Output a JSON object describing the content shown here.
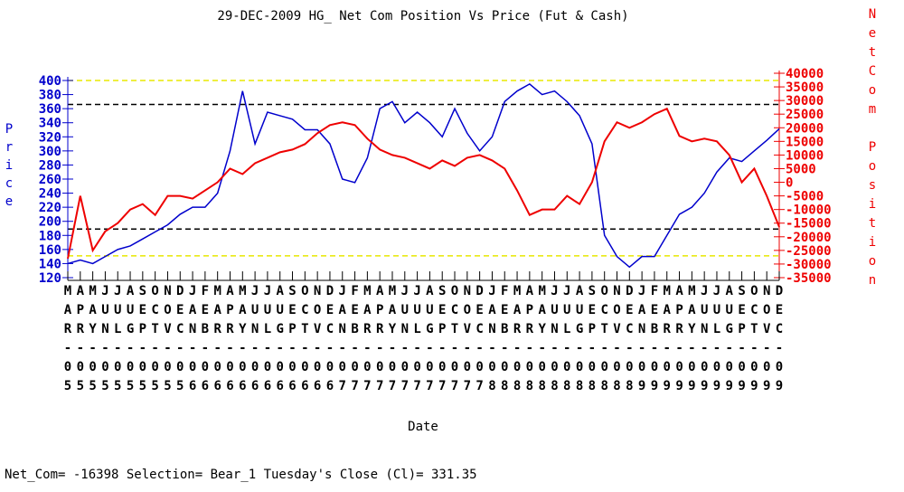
{
  "chart_data": {
    "type": "line",
    "title": "29-DEC-2009 HG_ Net Com Position Vs Price (Fut & Cash)",
    "y_label": "Price",
    "y2_label": "NetCom Position",
    "x_label": "Date",
    "annotation": "Net_Com= -16398 Selection= Bear_1 Tuesday's Close (Cl)= 331.35",
    "categories": [
      "MAR-05",
      "APR-05",
      "MAY-05",
      "JUN-05",
      "JUL-05",
      "AUG-05",
      "SEP-05",
      "OCT-05",
      "NOV-05",
      "DEC-05",
      "JAN-06",
      "FEB-06",
      "MAR-06",
      "APR-06",
      "MAY-06",
      "JUN-06",
      "JUL-06",
      "AUG-06",
      "SEP-06",
      "OCT-06",
      "NOV-06",
      "DEC-06",
      "JAN-07",
      "FEB-07",
      "MAR-07",
      "APR-07",
      "MAY-07",
      "JUN-07",
      "JUL-07",
      "AUG-07",
      "SEP-07",
      "OCT-07",
      "NOV-07",
      "DEC-07",
      "JAN-08",
      "FEB-08",
      "MAR-08",
      "APR-08",
      "MAY-08",
      "JUN-08",
      "JUL-08",
      "AUG-08",
      "SEP-08",
      "OCT-08",
      "NOV-08",
      "DEC-08",
      "JAN-09",
      "FEB-09",
      "MAR-09",
      "APR-09",
      "MAY-09",
      "JUN-09",
      "JUL-09",
      "AUG-09",
      "SEP-09",
      "OCT-09",
      "NOV-09",
      "DEC-09"
    ],
    "series": [
      {
        "color": "#0000cc",
        "axis": "y",
        "values": [
          140,
          145,
          140,
          150,
          160,
          165,
          175,
          185,
          195,
          210,
          220,
          220,
          240,
          300,
          385,
          310,
          355,
          350,
          345,
          330,
          330,
          310,
          260,
          255,
          290,
          360,
          370,
          340,
          355,
          340,
          320,
          360,
          325,
          300,
          320,
          370,
          385,
          395,
          380,
          385,
          370,
          350,
          310,
          180,
          150,
          135,
          150,
          150,
          180,
          210,
          220,
          240,
          270,
          290,
          285,
          300,
          315,
          331.35
        ]
      },
      {
        "color": "#ee0000",
        "axis": "y2",
        "values": [
          -28000,
          -5000,
          -25000,
          -18000,
          -15000,
          -10000,
          -8000,
          -12000,
          -5000,
          -5000,
          -6000,
          -3000,
          0,
          5000,
          3000,
          7000,
          9000,
          11000,
          12000,
          14000,
          18000,
          21000,
          22000,
          21000,
          16000,
          12000,
          10000,
          9000,
          7000,
          5000,
          8000,
          6000,
          9000,
          10000,
          8000,
          5000,
          -3000,
          -12000,
          -10000,
          -10000,
          -5000,
          -8000,
          0,
          15000,
          22000,
          20000,
          22000,
          25000,
          27000,
          17000,
          15000,
          16000,
          15000,
          10000,
          0,
          5000,
          -5000,
          -16398
        ]
      }
    ],
    "ylim": [
      120,
      400
    ],
    "yticks": [
      120,
      140,
      160,
      180,
      200,
      220,
      240,
      260,
      280,
      300,
      320,
      340,
      360,
      380,
      400
    ],
    "y2lim": [
      -35000,
      40000
    ],
    "y2ticks": [
      -35000,
      -30000,
      -25000,
      -20000,
      -15000,
      -10000,
      -5000,
      0,
      5000,
      10000,
      15000,
      20000,
      25000,
      30000,
      35000,
      40000
    ],
    "reference_lines": [
      {
        "value": 400,
        "color": "#e8e800"
      },
      {
        "value": 366,
        "color": "#000000"
      },
      {
        "value": 189,
        "color": "#000000"
      },
      {
        "value": 151,
        "color": "#e8e800"
      }
    ],
    "y_color": "#0000cc",
    "y2_color": "#ee0000"
  }
}
